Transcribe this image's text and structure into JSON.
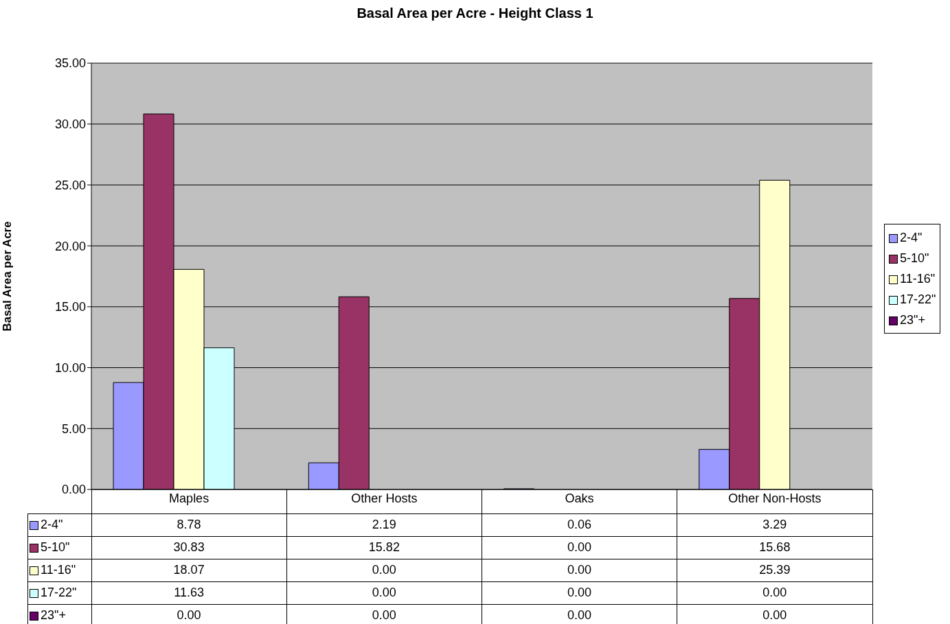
{
  "chart_data": {
    "type": "bar",
    "title": "Basal Area per Acre - Height Class 1",
    "ylabel": "Basal Area per Acre",
    "categories": [
      "Maples",
      "Other Hosts",
      "Oaks",
      "Other Non-Hosts"
    ],
    "series": [
      {
        "name": "2-4\"",
        "color": "#9999ff",
        "values": [
          8.78,
          2.19,
          0.06,
          3.29
        ],
        "value_labels": [
          "8.78",
          "2.19",
          "0.06",
          "3.29"
        ]
      },
      {
        "name": "5-10\"",
        "color": "#993366",
        "values": [
          30.83,
          15.82,
          0,
          15.68
        ],
        "value_labels": [
          "30.83",
          "15.82",
          "0.00",
          "15.68"
        ]
      },
      {
        "name": "11-16\"",
        "color": "#ffffcc",
        "values": [
          18.07,
          0,
          0,
          25.39
        ],
        "value_labels": [
          "18.07",
          "0.00",
          "0.00",
          "25.39"
        ]
      },
      {
        "name": "17-22\"",
        "color": "#ccffff",
        "values": [
          11.63,
          0,
          0,
          0
        ],
        "value_labels": [
          "11.63",
          "0.00",
          "0.00",
          "0.00"
        ]
      },
      {
        "name": "23\"+",
        "color": "#660066",
        "values": [
          0,
          0,
          0,
          0
        ],
        "value_labels": [
          "0.00",
          "0.00",
          "0.00",
          "0.00"
        ]
      }
    ],
    "ylim": [
      0,
      35
    ],
    "yticks": [
      {
        "value": 0,
        "label": "0.00"
      },
      {
        "value": 5,
        "label": "5.00"
      },
      {
        "value": 10,
        "label": "10.00"
      },
      {
        "value": 15,
        "label": "15.00"
      },
      {
        "value": 20,
        "label": "20.00"
      },
      {
        "value": 25,
        "label": "25.00"
      },
      {
        "value": 30,
        "label": "30.00"
      },
      {
        "value": 35,
        "label": "35.00"
      }
    ],
    "grid": "y",
    "legend": "right"
  }
}
